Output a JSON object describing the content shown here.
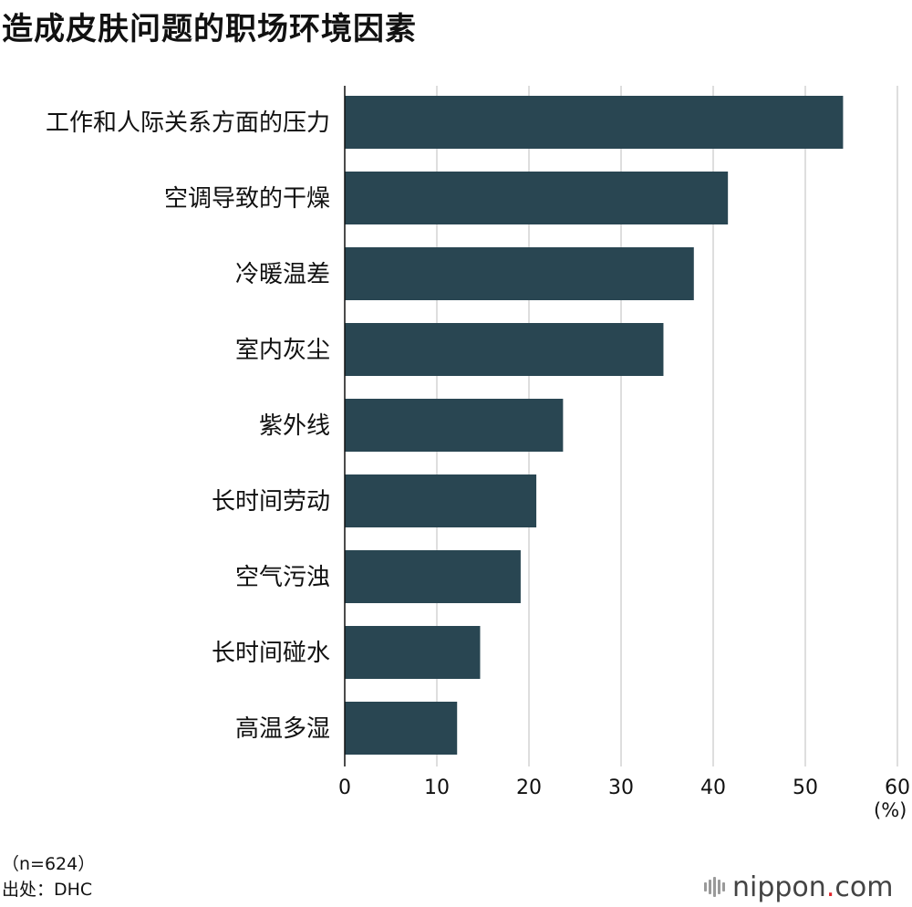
{
  "title": "造成皮肤问题的职场环境因素",
  "chart_data": {
    "type": "bar",
    "orientation": "horizontal",
    "title": "造成皮肤问题的职场环境因素",
    "categories": [
      "工作和人际关系方面的压力",
      "空调导致的干燥",
      "冷暖温差",
      "室内灰尘",
      "紫外线",
      "长时间劳动",
      "空气污浊",
      "长时间碰水",
      "高温多湿"
    ],
    "values": [
      54.1,
      41.6,
      37.9,
      34.6,
      23.7,
      20.8,
      19.1,
      14.7,
      12.2
    ],
    "xlim": [
      0,
      60
    ],
    "xticks": [
      "0",
      "10",
      "20",
      "30",
      "40",
      "50",
      "60"
    ],
    "xlabel": "(%)",
    "grid": true,
    "colors": {
      "bar": "#294652",
      "grid": "#d4d4d4",
      "axis": "#111111"
    }
  },
  "footnotes": {
    "sample": "（n=624）",
    "source": "出处：DHC"
  },
  "logo": {
    "text": "nippon",
    "dot": ".",
    "suffix": "com"
  }
}
